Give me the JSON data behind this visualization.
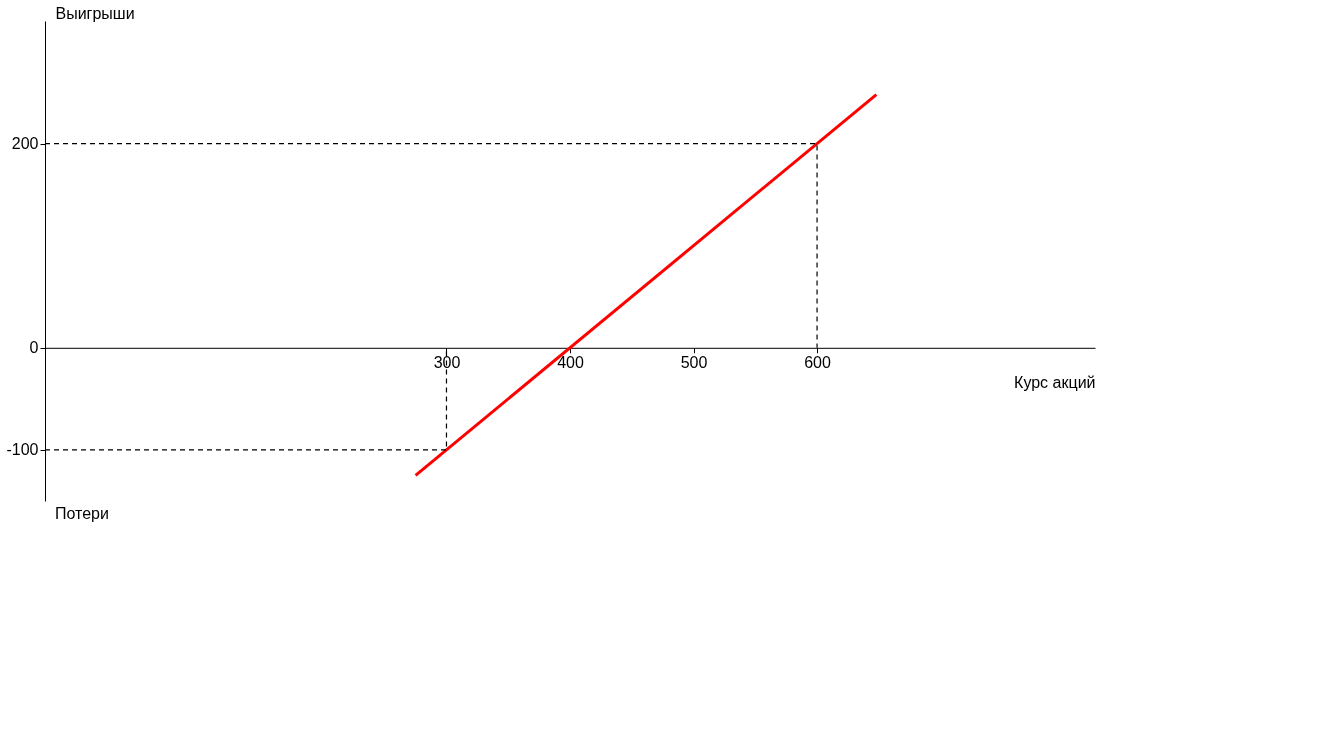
{
  "chart_data": {
    "type": "line",
    "xlabel": "Курс акций",
    "ylabel": "Выигрыши",
    "annotations": [
      "Потери"
    ],
    "xlim": [
      -25,
      825
    ],
    "ylim": [
      -150,
      320
    ],
    "xticks": [
      300,
      400,
      500,
      600
    ],
    "yticks": [
      -100,
      0,
      200
    ],
    "grid": false,
    "series": [
      {
        "color": "#ff0000",
        "line_style": "solid",
        "x": [
          275,
          648
        ],
        "values": [
          -125,
          248
        ]
      },
      {
        "color": "#000000",
        "line_style": "dashed",
        "x": [
          -25,
          300,
          300
        ],
        "values": [
          -100,
          -100,
          0
        ]
      },
      {
        "color": "#000000",
        "line_style": "dashed",
        "x": [
          -25,
          600,
          600
        ],
        "values": [
          200,
          200,
          0
        ]
      }
    ]
  }
}
